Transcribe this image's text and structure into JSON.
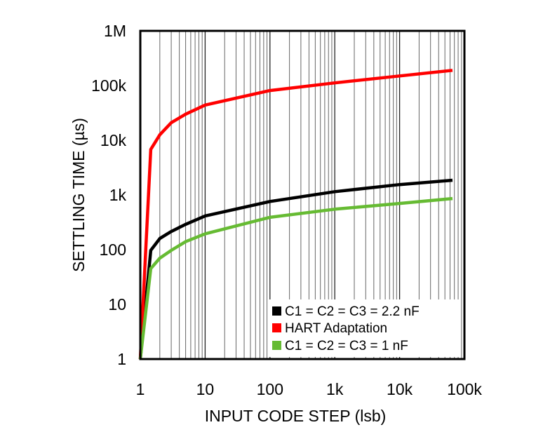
{
  "chart_data": {
    "type": "line",
    "xlabel": "INPUT CODE STEP (lsb)",
    "ylabel": "SETTLING TIME (µs)",
    "x_scale": "log",
    "y_scale": "log",
    "xlim": [
      1,
      100000
    ],
    "ylim": [
      1,
      1000000
    ],
    "x_ticks": [
      {
        "v": 1,
        "label": "1"
      },
      {
        "v": 10,
        "label": "10"
      },
      {
        "v": 100,
        "label": "100"
      },
      {
        "v": 1000,
        "label": "1k"
      },
      {
        "v": 10000,
        "label": "10k"
      },
      {
        "v": 100000,
        "label": "100k"
      }
    ],
    "y_ticks": [
      {
        "v": 1,
        "label": "1"
      },
      {
        "v": 10,
        "label": "10"
      },
      {
        "v": 100,
        "label": "100"
      },
      {
        "v": 1000,
        "label": "1k"
      },
      {
        "v": 10000,
        "label": "10k"
      },
      {
        "v": 100000,
        "label": "100k"
      },
      {
        "v": 1000000,
        "label": "1M"
      }
    ],
    "grid": "vertical minor log gridlines",
    "legend_position": "bottom-right",
    "series": [
      {
        "name": "C1 = C2 = C3 = 2.2 nF",
        "color": "#000000",
        "x": [
          1,
          1.45,
          2,
          3,
          5,
          10,
          100,
          1000,
          10000,
          65536
        ],
        "y": [
          1,
          97,
          160,
          215,
          290,
          414,
          760,
          1150,
          1550,
          1860
        ]
      },
      {
        "name": "HART Adaptation",
        "color": "#ff0000",
        "x": [
          1,
          1.45,
          2,
          3,
          5,
          10,
          100,
          1000,
          10000,
          65536
        ],
        "y": [
          1,
          6800,
          12600,
          21000,
          30000,
          44000,
          81000,
          112000,
          150000,
          190000
        ]
      },
      {
        "name": "C1 = C2 = C3 = 1 nF",
        "color": "#66bb33",
        "x": [
          1,
          1.45,
          2,
          3,
          5,
          10,
          100,
          1000,
          10000,
          65536
        ],
        "y": [
          1,
          45,
          70,
          97,
          140,
          195,
          390,
          550,
          700,
          860
        ]
      }
    ]
  }
}
